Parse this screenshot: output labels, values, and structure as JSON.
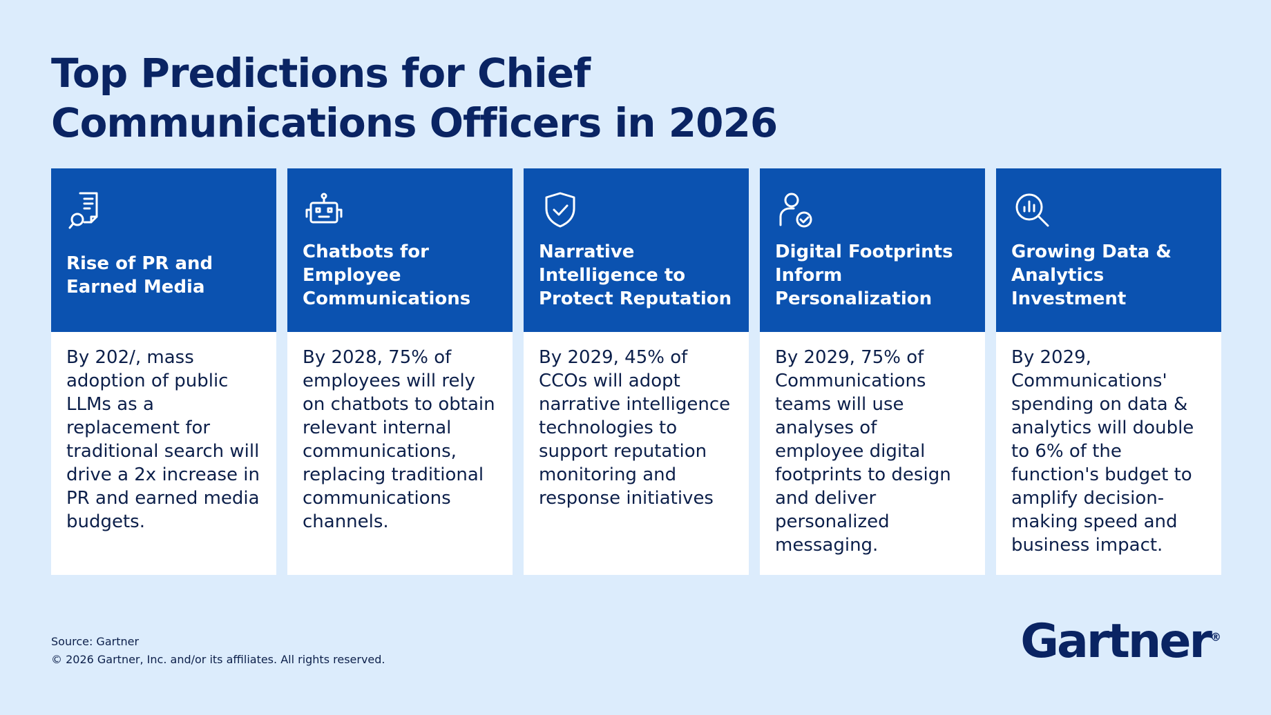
{
  "header": {
    "title": "Top Predictions for Chief Communications Officers in 2026"
  },
  "cards": [
    {
      "heading": "Rise of PR and Earned Media",
      "text": "By 202/, mass adoption of public LLMs as a replacement for traditional search will drive a 2x increase in PR and earned media budgets."
    },
    {
      "heading": "Chatbots for Employee Communications",
      "text": "By 2028, 75% of employees will rely on chatbots to obtain relevant internal communications, replacing traditional communications channels."
    },
    {
      "heading": "Narrative Intelligence to Protect Reputation",
      "text": "By 2029, 45% of CCOs will adopt narrative intelligence technologies to support reputation monitoring and response initiatives"
    },
    {
      "heading": "Digital Footprints Inform Personalization",
      "text": "By 2029, 75% of Communications teams will use analyses of employee digital footprints to design and deliver personalized messaging."
    },
    {
      "heading": "Growing Data & Analytics Investment",
      "text": "By 2029, Communications' spending on data & analytics will double to 6% of the function's budget to amplify decision-making speed and business impact."
    }
  ],
  "footer": {
    "source": "Source: Gartner",
    "copyright": "© 2026 Gartner, Inc. and/or its affiliates. All rights reserved.",
    "logo": "Gartner",
    "logo_mark": "®"
  }
}
